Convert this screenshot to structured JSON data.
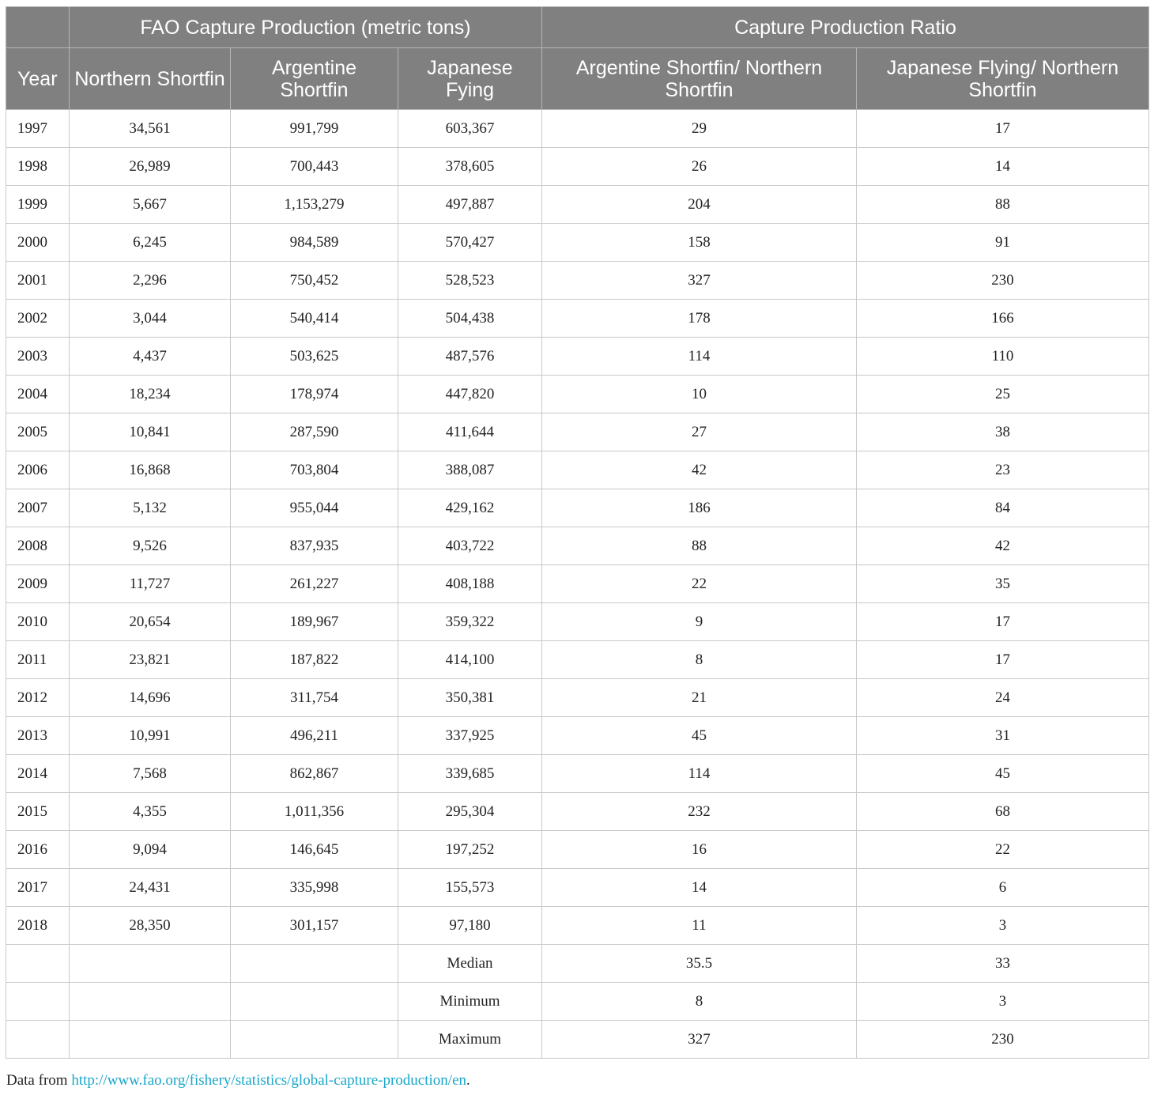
{
  "header": {
    "group_fao": "FAO Capture Production (metric tons)",
    "group_ratio": "Capture Production Ratio",
    "year": "Year",
    "northern": "Northern Shortfin",
    "argentine": "Argentine Shortfin",
    "japanese": "Japanese Fying",
    "ratio_arg": "Argentine Shortfin/ Northern Shortfin",
    "ratio_jap": "Japanese Flying/ Northern Shortfin"
  },
  "rows": [
    [
      "1997",
      "34,561",
      "991,799",
      "603,367",
      "29",
      "17"
    ],
    [
      "1998",
      "26,989",
      "700,443",
      "378,605",
      "26",
      "14"
    ],
    [
      "1999",
      "5,667",
      "1,153,279",
      "497,887",
      "204",
      "88"
    ],
    [
      "2000",
      "6,245",
      "984,589",
      "570,427",
      "158",
      "91"
    ],
    [
      "2001",
      "2,296",
      "750,452",
      "528,523",
      "327",
      "230"
    ],
    [
      "2002",
      "3,044",
      "540,414",
      "504,438",
      "178",
      "166"
    ],
    [
      "2003",
      "4,437",
      "503,625",
      "487,576",
      "114",
      "110"
    ],
    [
      "2004",
      "18,234",
      "178,974",
      "447,820",
      "10",
      "25"
    ],
    [
      "2005",
      "10,841",
      "287,590",
      "411,644",
      "27",
      "38"
    ],
    [
      "2006",
      "16,868",
      "703,804",
      "388,087",
      "42",
      "23"
    ],
    [
      "2007",
      "5,132",
      "955,044",
      "429,162",
      "186",
      "84"
    ],
    [
      "2008",
      "9,526",
      "837,935",
      "403,722",
      "88",
      "42"
    ],
    [
      "2009",
      "11,727",
      "261,227",
      "408,188",
      "22",
      "35"
    ],
    [
      "2010",
      "20,654",
      "189,967",
      "359,322",
      "9",
      "17"
    ],
    [
      "2011",
      "23,821",
      "187,822",
      "414,100",
      "8",
      "17"
    ],
    [
      "2012",
      "14,696",
      "311,754",
      "350,381",
      "21",
      "24"
    ],
    [
      "2013",
      "10,991",
      "496,211",
      "337,925",
      "45",
      "31"
    ],
    [
      "2014",
      "7,568",
      "862,867",
      "339,685",
      "114",
      "45"
    ],
    [
      "2015",
      "4,355",
      "1,011,356",
      "295,304",
      "232",
      "68"
    ],
    [
      "2016",
      "9,094",
      "146,645",
      "197,252",
      "16",
      "22"
    ],
    [
      "2017",
      "24,431",
      "335,998",
      "155,573",
      "14",
      "6"
    ],
    [
      "2018",
      "28,350",
      "301,157",
      "97,180",
      "11",
      "3"
    ]
  ],
  "summary": [
    [
      "",
      "",
      "",
      "Median",
      "35.5",
      "33"
    ],
    [
      "",
      "",
      "",
      "Minimum",
      "8",
      "3"
    ],
    [
      "",
      "",
      "",
      "Maximum",
      "327",
      "230"
    ]
  ],
  "footnote": {
    "prefix": "Data from ",
    "link": "http://www.fao.org/fishery/statistics/global-capture-production/en",
    "suffix": "."
  }
}
